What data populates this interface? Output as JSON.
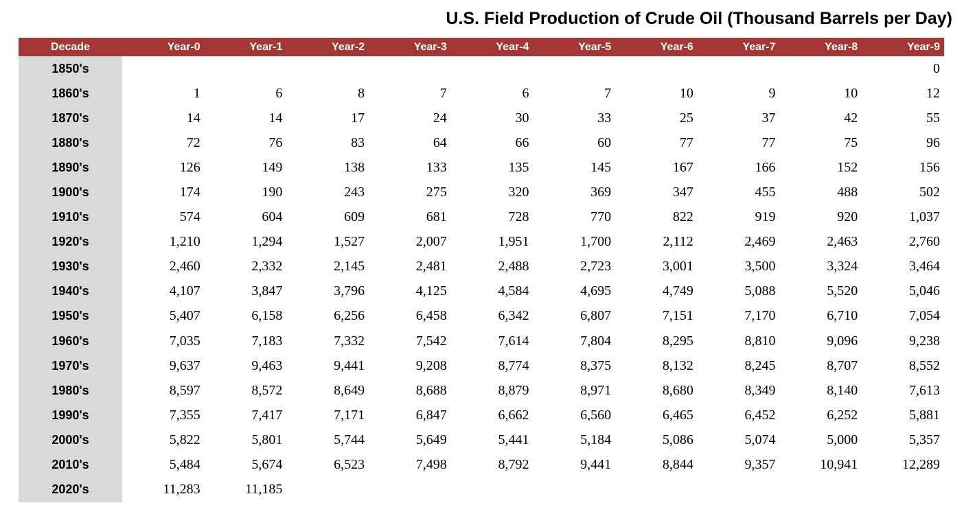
{
  "title": "U.S. Field Production of Crude Oil (Thousand Barrels per Day)",
  "colors": {
    "header_bg": "#A43733",
    "header_text": "#FFFFFF",
    "decade_column_bg": "#D9D9D9",
    "body_text": "#000000",
    "page_bg": "#FFFFFF"
  },
  "chart_data": {
    "type": "table",
    "title": "U.S. Field Production of Crude Oil (Thousand Barrels per Day)",
    "columns": [
      "Decade",
      "Year-0",
      "Year-1",
      "Year-2",
      "Year-3",
      "Year-4",
      "Year-5",
      "Year-6",
      "Year-7",
      "Year-8",
      "Year-9"
    ],
    "rows": [
      {
        "decade": "1850's",
        "values": [
          "",
          "",
          "",
          "",
          "",
          "",
          "",
          "",
          "",
          "0"
        ]
      },
      {
        "decade": "1860's",
        "values": [
          "1",
          "6",
          "8",
          "7",
          "6",
          "7",
          "10",
          "9",
          "10",
          "12"
        ]
      },
      {
        "decade": "1870's",
        "values": [
          "14",
          "14",
          "17",
          "24",
          "30",
          "33",
          "25",
          "37",
          "42",
          "55"
        ]
      },
      {
        "decade": "1880's",
        "values": [
          "72",
          "76",
          "83",
          "64",
          "66",
          "60",
          "77",
          "77",
          "75",
          "96"
        ]
      },
      {
        "decade": "1890's",
        "values": [
          "126",
          "149",
          "138",
          "133",
          "135",
          "145",
          "167",
          "166",
          "152",
          "156"
        ]
      },
      {
        "decade": "1900's",
        "values": [
          "174",
          "190",
          "243",
          "275",
          "320",
          "369",
          "347",
          "455",
          "488",
          "502"
        ]
      },
      {
        "decade": "1910's",
        "values": [
          "574",
          "604",
          "609",
          "681",
          "728",
          "770",
          "822",
          "919",
          "920",
          "1,037"
        ]
      },
      {
        "decade": "1920's",
        "values": [
          "1,210",
          "1,294",
          "1,527",
          "2,007",
          "1,951",
          "1,700",
          "2,112",
          "2,469",
          "2,463",
          "2,760"
        ]
      },
      {
        "decade": "1930's",
        "values": [
          "2,460",
          "2,332",
          "2,145",
          "2,481",
          "2,488",
          "2,723",
          "3,001",
          "3,500",
          "3,324",
          "3,464"
        ]
      },
      {
        "decade": "1940's",
        "values": [
          "4,107",
          "3,847",
          "3,796",
          "4,125",
          "4,584",
          "4,695",
          "4,749",
          "5,088",
          "5,520",
          "5,046"
        ]
      },
      {
        "decade": "1950's",
        "values": [
          "5,407",
          "6,158",
          "6,256",
          "6,458",
          "6,342",
          "6,807",
          "7,151",
          "7,170",
          "6,710",
          "7,054"
        ]
      },
      {
        "decade": "1960's",
        "values": [
          "7,035",
          "7,183",
          "7,332",
          "7,542",
          "7,614",
          "7,804",
          "8,295",
          "8,810",
          "9,096",
          "9,238"
        ]
      },
      {
        "decade": "1970's",
        "values": [
          "9,637",
          "9,463",
          "9,441",
          "9,208",
          "8,774",
          "8,375",
          "8,132",
          "8,245",
          "8,707",
          "8,552"
        ]
      },
      {
        "decade": "1980's",
        "values": [
          "8,597",
          "8,572",
          "8,649",
          "8,688",
          "8,879",
          "8,971",
          "8,680",
          "8,349",
          "8,140",
          "7,613"
        ]
      },
      {
        "decade": "1990's",
        "values": [
          "7,355",
          "7,417",
          "7,171",
          "6,847",
          "6,662",
          "6,560",
          "6,465",
          "6,452",
          "6,252",
          "5,881"
        ]
      },
      {
        "decade": "2000's",
        "values": [
          "5,822",
          "5,801",
          "5,744",
          "5,649",
          "5,441",
          "5,184",
          "5,086",
          "5,074",
          "5,000",
          "5,357"
        ]
      },
      {
        "decade": "2010's",
        "values": [
          "5,484",
          "5,674",
          "6,523",
          "7,498",
          "8,792",
          "9,441",
          "8,844",
          "9,357",
          "10,941",
          "12,289"
        ]
      },
      {
        "decade": "2020's",
        "values": [
          "11,283",
          "11,185",
          "",
          "",
          "",
          "",
          "",
          "",
          "",
          ""
        ]
      }
    ]
  }
}
